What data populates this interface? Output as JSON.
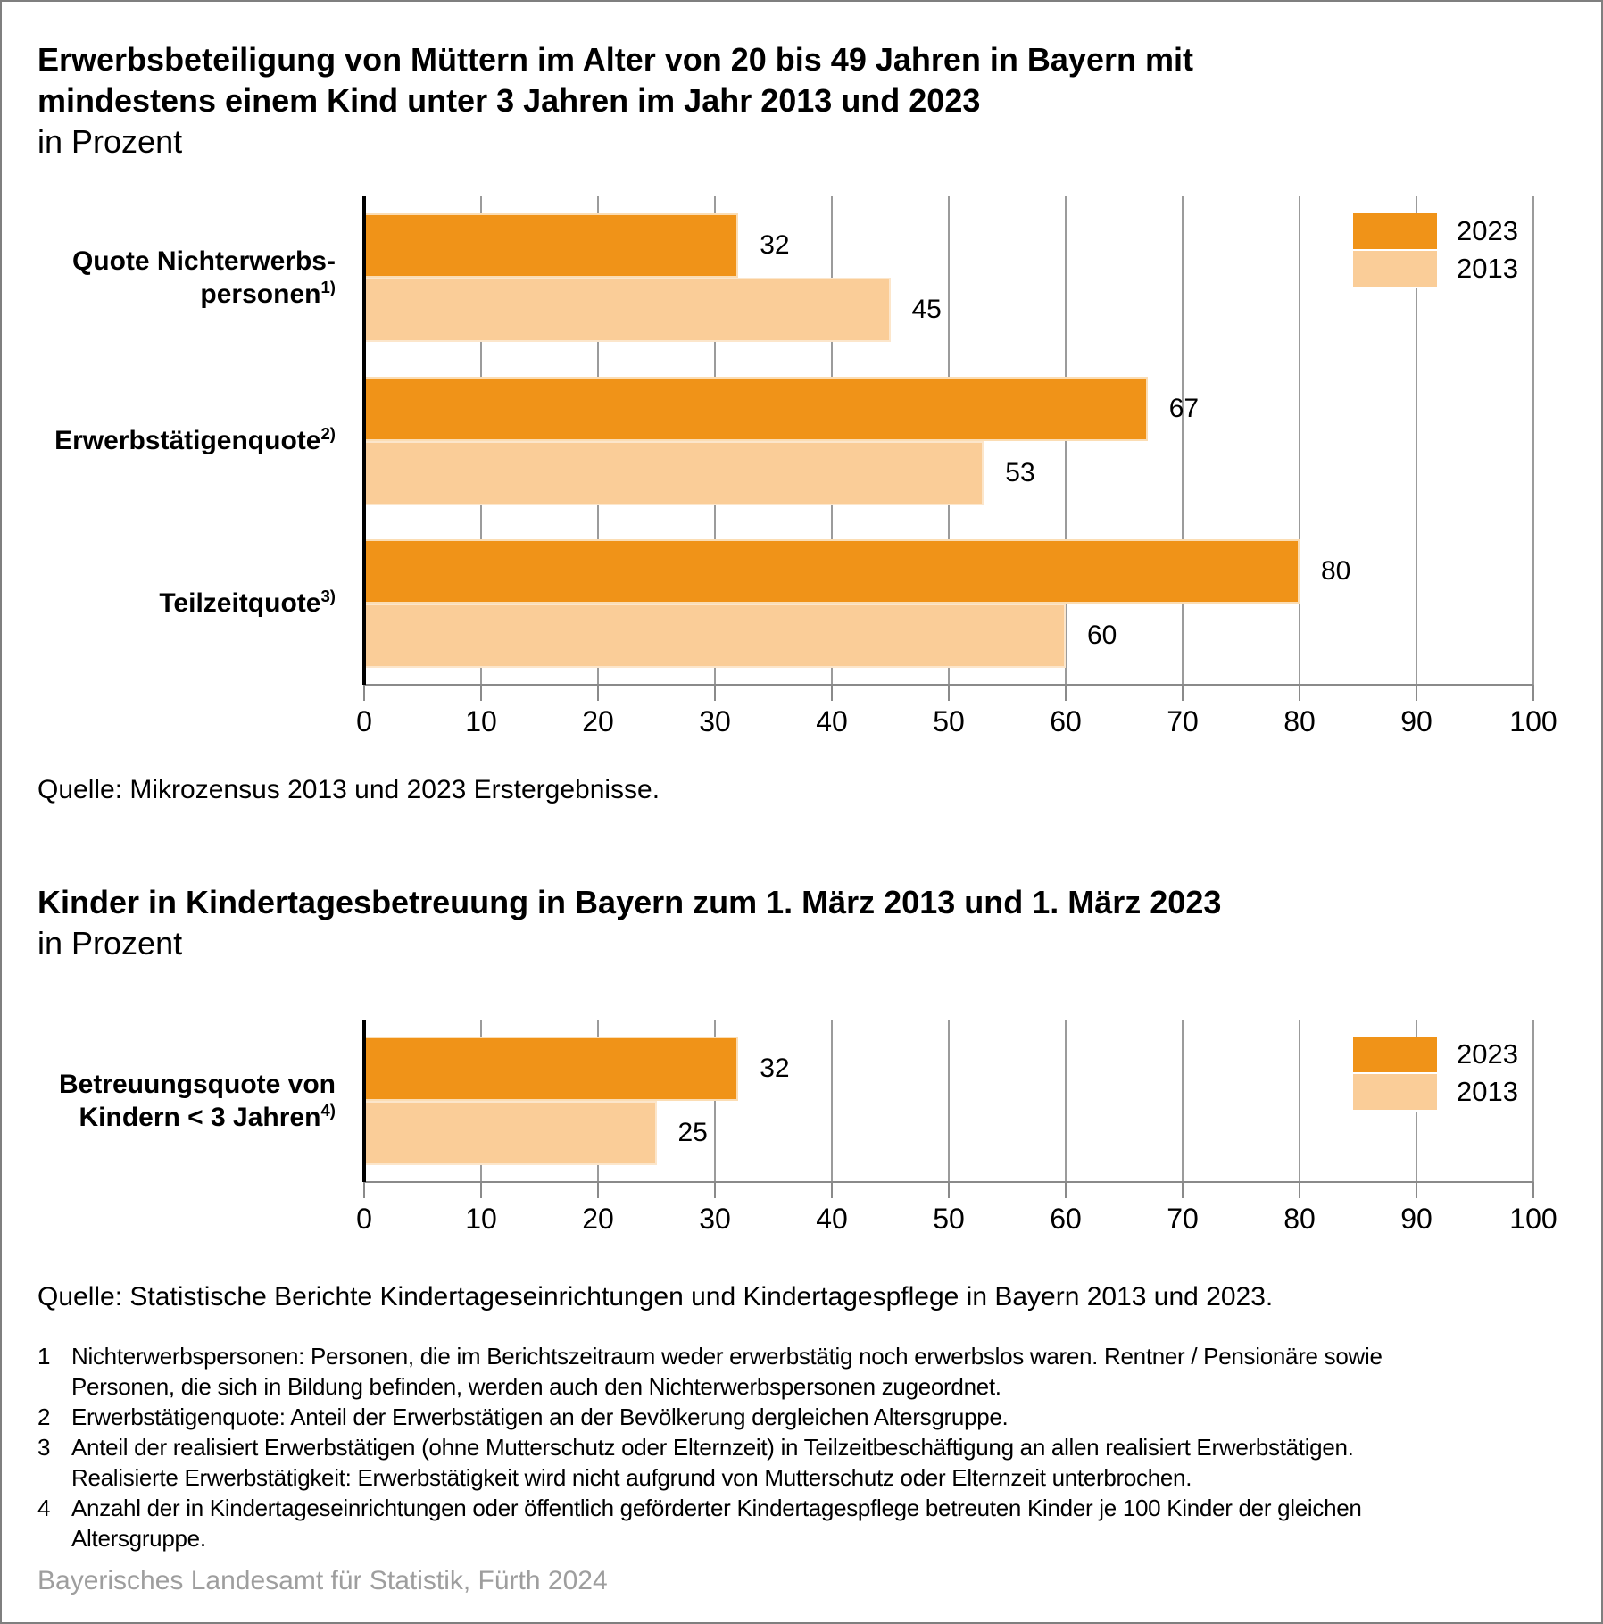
{
  "page": {
    "footer": "Bayerisches Landesamt für Statistik, Fürth 2024"
  },
  "colors": {
    "bar_2023": "#f09318",
    "bar_2013": "#facd98",
    "gridline": "#9b9b9b",
    "axis_line": "#8a8a8a",
    "y_axis": "#000000",
    "footer_text": "#9e9e9e"
  },
  "chart_data": [
    {
      "type": "bar",
      "orientation": "horizontal",
      "title": "Erwerbsbeteiligung von Müttern im Alter von 20 bis 49 Jahren in Bayern mit\nmindestens einem Kind unter 3 Jahren im Jahr 2013 und 2023",
      "subtitle": "in Prozent",
      "categories": [
        "Quote Nichterwerbs-\npersonen",
        "Erwerbstätigenquote",
        "Teilzeitquote"
      ],
      "category_footnote_refs": [
        "1)",
        "2)",
        "3)"
      ],
      "series": [
        {
          "name": "2023",
          "values": [
            32,
            67,
            80
          ]
        },
        {
          "name": "2013",
          "values": [
            45,
            53,
            60
          ]
        }
      ],
      "xlim": [
        0,
        100
      ],
      "ticks": [
        0,
        10,
        20,
        30,
        40,
        50,
        60,
        70,
        80,
        90,
        100
      ],
      "grid": true,
      "legend_position": "top-right",
      "source": "Quelle: Mikrozensus 2013 und 2023 Erstergebnisse."
    },
    {
      "type": "bar",
      "orientation": "horizontal",
      "title": "Kinder in Kindertagesbetreuung in Bayern zum 1. März 2013 und 1. März 2023",
      "subtitle": "in Prozent",
      "categories": [
        "Betreuungsquote von\nKindern < 3 Jahren"
      ],
      "category_footnote_refs": [
        "4)"
      ],
      "series": [
        {
          "name": "2023",
          "values": [
            32
          ]
        },
        {
          "name": "2013",
          "values": [
            25
          ]
        }
      ],
      "xlim": [
        0,
        100
      ],
      "ticks": [
        0,
        10,
        20,
        30,
        40,
        50,
        60,
        70,
        80,
        90,
        100
      ],
      "grid": true,
      "legend_position": "top-right",
      "source": "Quelle: Statistische Berichte Kindertageseinrichtungen und Kindertagespflege in Bayern 2013 und 2023."
    }
  ],
  "footnotes": [
    {
      "num": "1",
      "text": "Nichterwerbspersonen: Personen, die im Berichtszeitraum weder erwerbstätig noch erwerbslos waren. Rentner / Pensionäre sowie\nPersonen, die sich in Bildung befinden, werden auch den Nichterwerbspersonen zugeordnet."
    },
    {
      "num": "2",
      "text": "Erwerbstätigenquote: Anteil der Erwerbstätigen an der Bevölkerung dergleichen Altersgruppe."
    },
    {
      "num": "3",
      "text": "Anteil der realisiert Erwerbstätigen (ohne Mutterschutz oder Elternzeit) in Teilzeitbeschäftigung an allen realisiert Erwerbstätigen.\nRealisierte Erwerbstätigkeit: Erwerbstätigkeit wird nicht aufgrund von Mutterschutz oder Elternzeit unterbrochen."
    },
    {
      "num": "4",
      "text": "Anzahl der in Kindertageseinrichtungen oder öffentlich geförderter Kindertagespflege betreuten Kinder je 100 Kinder der gleichen\nAltersgruppe."
    }
  ]
}
